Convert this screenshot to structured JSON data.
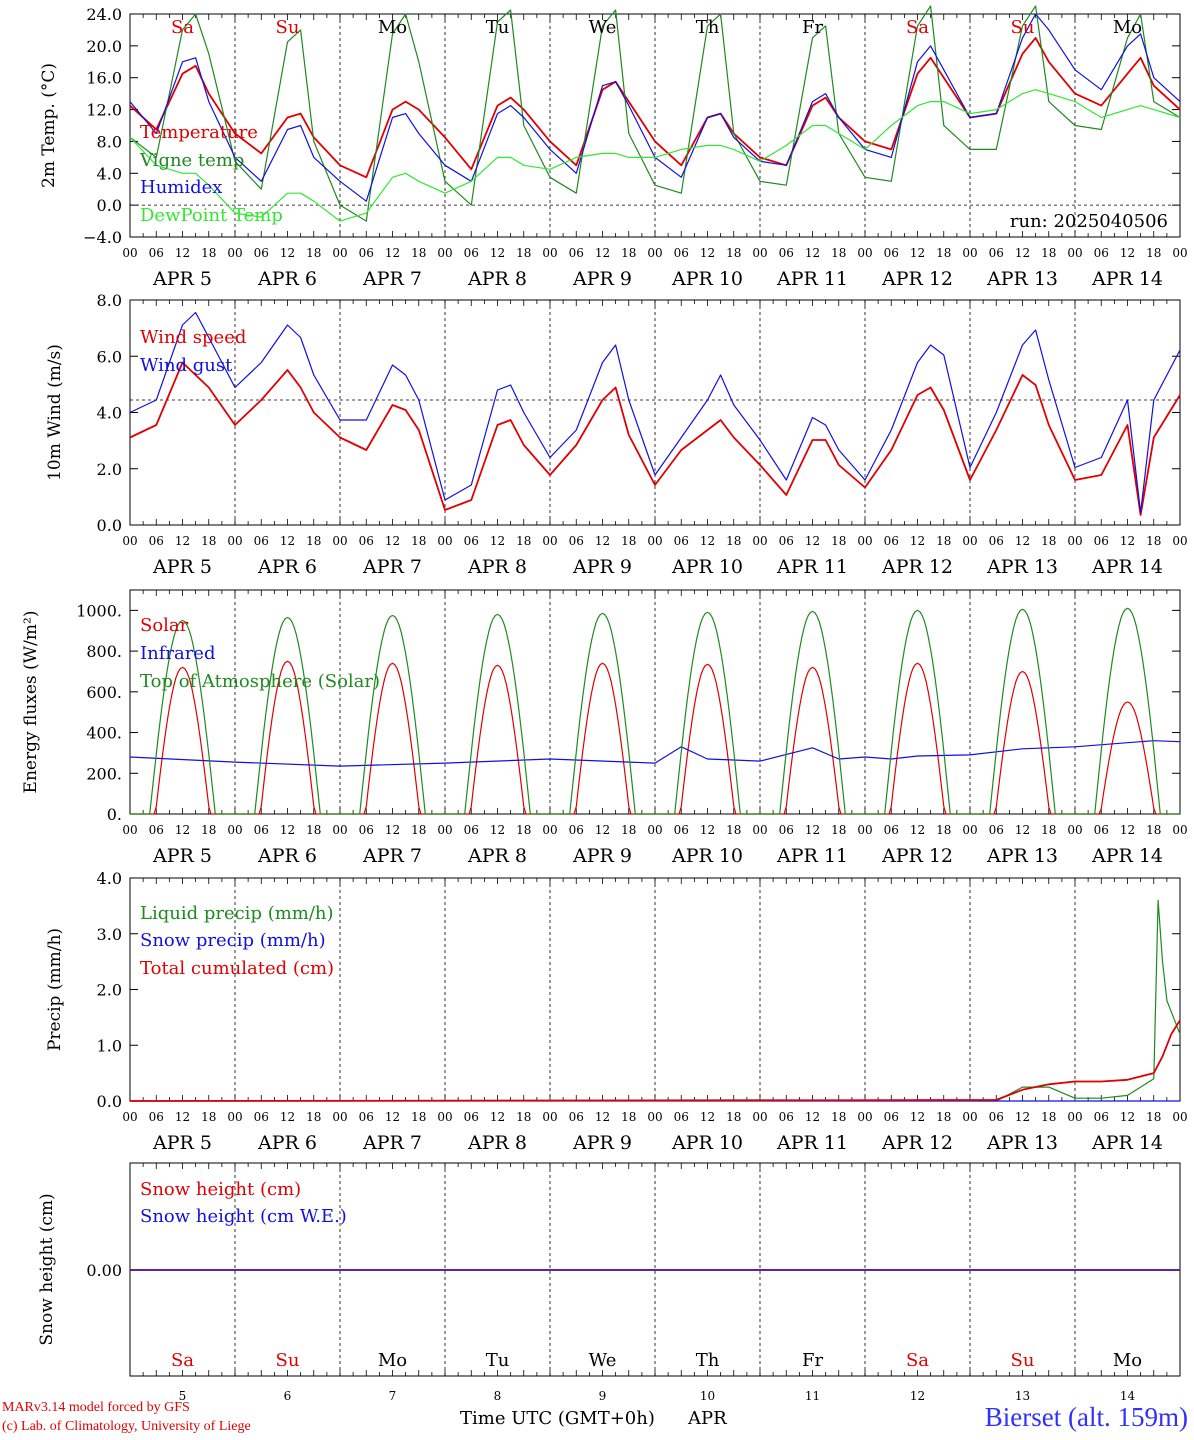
{
  "run_label": "run: 2025040506",
  "hour_ticks": [
    "00",
    "06",
    "12",
    "18"
  ],
  "end_tick": "00",
  "days": [
    {
      "date": "APR  5",
      "abbr": "Sa",
      "weekend": true,
      "num": "5"
    },
    {
      "date": "APR  6",
      "abbr": "Su",
      "weekend": true,
      "num": "6"
    },
    {
      "date": "APR  7",
      "abbr": "Mo",
      "weekend": false,
      "num": "7"
    },
    {
      "date": "APR  8",
      "abbr": "Tu",
      "weekend": false,
      "num": "8"
    },
    {
      "date": "APR  9",
      "abbr": "We",
      "weekend": false,
      "num": "9"
    },
    {
      "date": "APR 10",
      "abbr": "Th",
      "weekend": false,
      "num": "10"
    },
    {
      "date": "APR 11",
      "abbr": "Fr",
      "weekend": false,
      "num": "11"
    },
    {
      "date": "APR 12",
      "abbr": "Sa",
      "weekend": true,
      "num": "12"
    },
    {
      "date": "APR 13",
      "abbr": "Su",
      "weekend": true,
      "num": "13"
    },
    {
      "date": "APR 14",
      "abbr": "Mo",
      "weekend": false,
      "num": "14"
    }
  ],
  "x_axis_title": "Time UTC (GMT+0h)",
  "x_axis_month": "APR",
  "footer": {
    "credit_line1": "MARv3.14 model forced by GFS",
    "credit_line2": "(c) Lab. of Climatology, University of Liege",
    "station": "Bierset (alt. 159m)"
  },
  "colors": {
    "red": "#e00000",
    "dark_green": "#1f8a1f",
    "blue": "#1010e0",
    "light_green": "#33e633",
    "axis": "#000000"
  },
  "chart_data": [
    {
      "id": "temperature",
      "type": "line",
      "ylabel": "2m Temp. (°C)",
      "ylim": [
        -4,
        24
      ],
      "yticks": [
        "24.0",
        "20.0",
        "16.0",
        "12.0",
        "8.0",
        "4.0",
        "0.0",
        "−4.0"
      ],
      "reference_line": 0,
      "x_hours": [
        0,
        6,
        12,
        15,
        18,
        24,
        30,
        36,
        39,
        42,
        48,
        54,
        60,
        63,
        66,
        72,
        78,
        84,
        87,
        90,
        96,
        102,
        108,
        111,
        114,
        120,
        126,
        132,
        135,
        138,
        144,
        150,
        156,
        159,
        162,
        168,
        174,
        180,
        183,
        186,
        192,
        198,
        204,
        207,
        210,
        216,
        222,
        228,
        231,
        234,
        240
      ],
      "series": [
        {
          "name": "Temperature",
          "color": "red",
          "values": [
            12.5,
            9.5,
            16.5,
            17.5,
            14,
            9,
            6.5,
            11,
            11.5,
            8.5,
            5,
            3.5,
            12,
            13,
            12,
            8.5,
            4.5,
            12.5,
            13.5,
            12,
            8,
            5,
            14.5,
            15.5,
            13,
            8,
            5,
            11,
            11.5,
            9,
            6,
            5,
            12.5,
            13.5,
            11,
            8,
            7,
            16.5,
            18.5,
            16,
            11,
            11.5,
            19,
            21,
            18,
            14,
            12.5,
            16.5,
            18.5,
            15,
            12
          ]
        },
        {
          "name": "Vigne temp",
          "color": "dark_green",
          "values": [
            8.5,
            6,
            22,
            24,
            19,
            5.5,
            2,
            20.5,
            22,
            8,
            0,
            -2,
            21.5,
            24,
            18,
            3,
            0,
            23,
            24.5,
            10,
            3.5,
            1.5,
            22.5,
            24.5,
            9,
            2.5,
            1.5,
            22.5,
            24,
            9,
            3,
            2.5,
            21,
            22.5,
            9,
            3.5,
            3,
            22.5,
            25,
            10,
            7,
            7,
            22.5,
            25,
            13,
            10,
            9.5,
            21,
            24,
            13,
            11
          ]
        },
        {
          "name": "Humidex",
          "color": "blue",
          "values": [
            13,
            9,
            18,
            18.5,
            13,
            6,
            3,
            9.5,
            10,
            6,
            3,
            0.5,
            11,
            11.5,
            9,
            5,
            3,
            11.5,
            12.5,
            11,
            7,
            4,
            15,
            15.5,
            12.5,
            6,
            3.5,
            11,
            11.5,
            8.5,
            5.5,
            5,
            13,
            14,
            11,
            7,
            6,
            18,
            20,
            17,
            11,
            11.5,
            21,
            24,
            22,
            17,
            14.5,
            20,
            21.5,
            16,
            13
          ]
        },
        {
          "name": "DewPoint Temp",
          "color": "light_green",
          "values": [
            8.5,
            5,
            4,
            4,
            2.5,
            -1,
            -1.5,
            1.5,
            1.5,
            0.5,
            -2,
            -1,
            3.5,
            4,
            3,
            1.5,
            3,
            6,
            6,
            5,
            4.5,
            6,
            6.5,
            6.5,
            6,
            6,
            7,
            7.5,
            7.5,
            7,
            5.5,
            7.5,
            10,
            10,
            9,
            7,
            10,
            12.5,
            13,
            13,
            11.5,
            12,
            14,
            14.5,
            14,
            13,
            11,
            12,
            12.5,
            12,
            11
          ]
        }
      ],
      "legend": [
        "Temperature",
        "Vigne temp",
        "Humidex",
        "DewPoint Temp"
      ]
    },
    {
      "id": "wind",
      "type": "line",
      "ylabel": "10m Wind (m/s)",
      "ylim": [
        0,
        9
      ],
      "yticks": [
        "8.0",
        "6.0",
        "4.0",
        "2.0",
        "0.0"
      ],
      "reference_line": 5,
      "x_hours": [
        0,
        6,
        12,
        15,
        18,
        24,
        30,
        36,
        39,
        42,
        48,
        54,
        60,
        63,
        66,
        72,
        78,
        84,
        87,
        90,
        96,
        102,
        108,
        111,
        114,
        120,
        126,
        132,
        135,
        138,
        144,
        150,
        156,
        159,
        162,
        168,
        174,
        180,
        183,
        186,
        192,
        198,
        204,
        207,
        210,
        216,
        222,
        228,
        231,
        234,
        240
      ],
      "series": [
        {
          "name": "Wind speed",
          "color": "red",
          "values": [
            3.5,
            4,
            6.5,
            6,
            5.5,
            4,
            5,
            6.2,
            5.5,
            4.5,
            3.5,
            3,
            4.8,
            4.6,
            3.8,
            0.6,
            1,
            4,
            4.2,
            3.2,
            2,
            3.2,
            5,
            5.5,
            3.6,
            1.6,
            3,
            3.8,
            4.2,
            3.5,
            2.4,
            1.2,
            3.4,
            3.4,
            2.4,
            1.5,
            3,
            5.2,
            5.5,
            4.6,
            1.8,
            3.8,
            6,
            5.6,
            4,
            1.8,
            2,
            4,
            0.4,
            3.5,
            5.2
          ]
        },
        {
          "name": "Wind gust",
          "color": "blue",
          "values": [
            4.5,
            5,
            8,
            8.5,
            7.5,
            5.5,
            6.5,
            8,
            7.5,
            6,
            4.2,
            4.2,
            6.4,
            6,
            5,
            1,
            1.6,
            5.4,
            5.6,
            4.5,
            2.7,
            3.8,
            6.5,
            7.2,
            5,
            2,
            3.5,
            5,
            6,
            4.8,
            3.4,
            1.8,
            4.3,
            4,
            3,
            1.8,
            3.8,
            6.5,
            7.2,
            6.8,
            2.3,
            4.5,
            7.2,
            7.8,
            5.8,
            2.3,
            2.7,
            5,
            0.5,
            5,
            7
          ]
        }
      ],
      "legend": [
        "Wind speed",
        "Wind gust"
      ]
    },
    {
      "id": "energy",
      "type": "line",
      "ylabel": "Energy fluxes (W/m²)",
      "ylim": [
        0,
        1100
      ],
      "yticks": [
        "1000.",
        "800.",
        "600.",
        "400.",
        "200.",
        "0."
      ],
      "series": [
        {
          "name": "Solar",
          "color": "red",
          "peaks": [
            720,
            750,
            740,
            730,
            740,
            735,
            720,
            740,
            700,
            550
          ]
        },
        {
          "name": "Infrared",
          "color": "blue",
          "x_hours": [
            0,
            24,
            48,
            72,
            96,
            120,
            126,
            132,
            138,
            144,
            156,
            162,
            168,
            174,
            180,
            192,
            204,
            216,
            228,
            234,
            240
          ],
          "values": [
            280,
            255,
            235,
            250,
            270,
            250,
            330,
            270,
            265,
            260,
            325,
            270,
            280,
            270,
            285,
            290,
            320,
            330,
            350,
            360,
            355
          ]
        },
        {
          "name": "Top of Atmosphere (Solar)",
          "color": "dark_green",
          "peaks": [
            950,
            965,
            975,
            980,
            985,
            990,
            995,
            1000,
            1005,
            1010
          ]
        }
      ],
      "legend": [
        "Solar",
        "Infrared",
        "Top of Atmosphere (Solar)"
      ]
    },
    {
      "id": "precip",
      "type": "line",
      "ylabel": "Precip (mm/h)",
      "ylim": [
        0,
        4
      ],
      "yticks": [
        "4.0",
        "3.0",
        "2.0",
        "1.0",
        "0.0"
      ],
      "series": [
        {
          "name": "Liquid precip (mm/h)",
          "color": "dark_green",
          "x_hours": [
            0,
            144,
            198,
            204,
            210,
            216,
            222,
            228,
            234,
            235,
            236,
            237,
            238,
            240
          ],
          "values": [
            0,
            0.02,
            0,
            0.25,
            0.25,
            0.05,
            0.05,
            0.1,
            0.4,
            3.6,
            2.5,
            1.8,
            1.6,
            1.2
          ]
        },
        {
          "name": "Snow precip (mm/h)",
          "color": "blue",
          "x_hours": [
            0,
            240
          ],
          "values": [
            0,
            0
          ]
        },
        {
          "name": "Total cumulated (cm)",
          "color": "red",
          "x_hours": [
            0,
            144,
            198,
            204,
            210,
            216,
            222,
            228,
            234,
            236,
            238,
            240
          ],
          "values": [
            0,
            0.01,
            0.02,
            0.2,
            0.3,
            0.35,
            0.35,
            0.38,
            0.5,
            0.8,
            1.2,
            1.45
          ]
        }
      ],
      "legend": [
        "Liquid precip (mm/h)",
        "Snow precip (mm/h)",
        "Total cumulated (cm)"
      ]
    },
    {
      "id": "snow",
      "type": "line",
      "ylabel": "Snow height (cm)",
      "yticks": [
        "0.00"
      ],
      "series": [
        {
          "name": "Snow height (cm)",
          "color": "red",
          "x_hours": [
            0,
            240
          ],
          "values": [
            0,
            0
          ]
        },
        {
          "name": "Snow height (cm W.E.)",
          "color": "blue",
          "x_hours": [
            0,
            240
          ],
          "values": [
            0,
            0
          ]
        }
      ],
      "legend": [
        "Snow height (cm)",
        "Snow height (cm W.E.)"
      ]
    }
  ]
}
